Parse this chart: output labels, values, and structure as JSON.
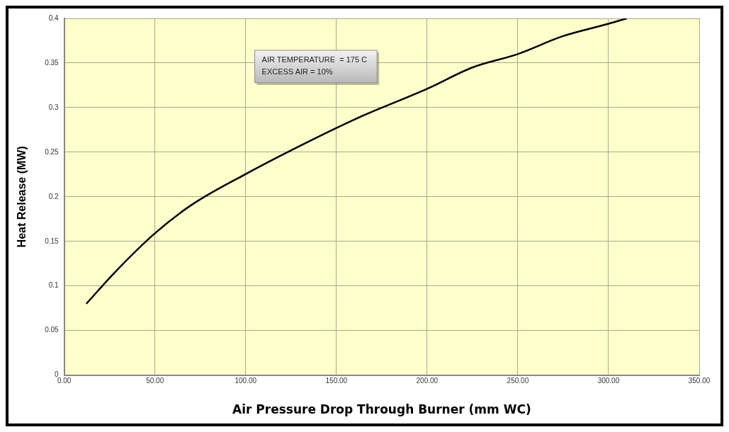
{
  "chart_data": {
    "type": "line",
    "xlabel": "Air Pressure Drop Through Burner (mm WC)",
    "ylabel": "Heat Release (MW)",
    "x": [
      12.2,
      27.8,
      50,
      70.3,
      99.6,
      126.9,
      160.3,
      200,
      225,
      250,
      274.7,
      300,
      310.1
    ],
    "series": [
      {
        "color": "#000000",
        "values": [
          0.08,
          0.115,
          0.159,
          0.191,
          0.225,
          0.254,
          0.287,
          0.321,
          0.345,
          0.36,
          0.38,
          0.394,
          0.4
        ]
      }
    ],
    "xlim": [
      0,
      350
    ],
    "xticks": [
      {
        "value": 0,
        "label": "0.00"
      },
      {
        "value": 50,
        "label": "50.00"
      },
      {
        "value": 100,
        "label": "100.00"
      },
      {
        "value": 150,
        "label": "150.00"
      },
      {
        "value": 200,
        "label": "200.00"
      },
      {
        "value": 250,
        "label": "250.00"
      },
      {
        "value": 300,
        "label": "300.00"
      },
      {
        "value": 350,
        "label": "350.00"
      }
    ],
    "ylim": [
      0,
      0.4
    ],
    "yticks": [
      0,
      0.05,
      0.1,
      0.15,
      0.2,
      0.25,
      0.3,
      0.35,
      0.4
    ],
    "annotations": [
      "AIR TEMPERATURE  = 175 C",
      "EXCESS AIR = 10%"
    ],
    "grid": true,
    "legend": false,
    "marker": "none",
    "line_style": "solid"
  }
}
